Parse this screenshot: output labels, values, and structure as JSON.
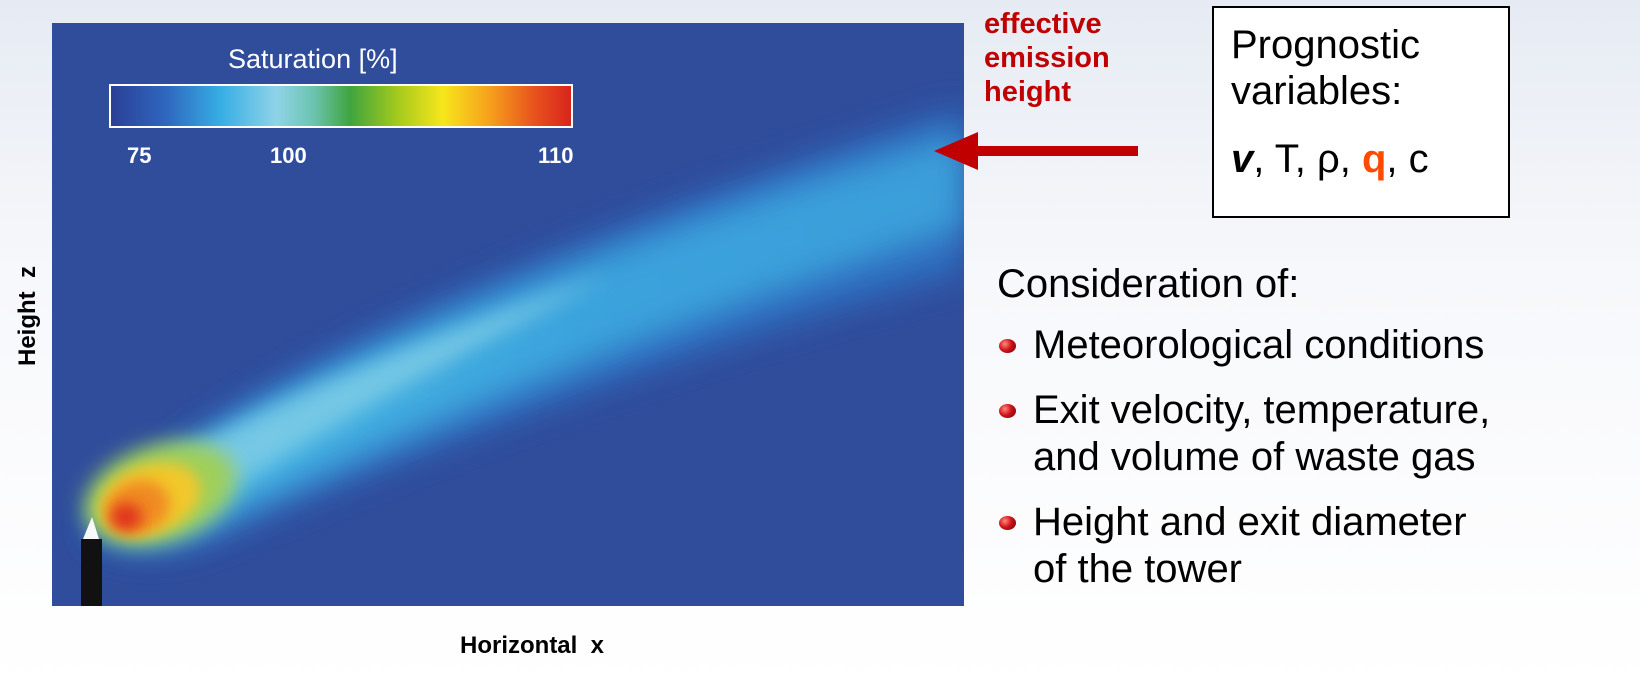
{
  "figure": {
    "colorbar": {
      "title": "Saturation  [%]",
      "ticks": [
        "75",
        "100",
        "110"
      ],
      "colors": [
        "#2b3f95",
        "#2f66be",
        "#37aee4",
        "#8fd3e8",
        "#6cc4b0",
        "#3fa43e",
        "#a2c91d",
        "#f7e61c",
        "#f6a21c",
        "#e8511d",
        "#d8231d"
      ]
    },
    "x_label": "Horizontal  x",
    "y_label": "Height  z",
    "background_color": "#304d9c"
  },
  "annotation": {
    "emission_lines": [
      "effective",
      "emission",
      "height"
    ],
    "color": "#c00000"
  },
  "prognostic": {
    "title_lines": [
      "Prognostic",
      "variables:"
    ],
    "vars": {
      "v": "v",
      "t": ", T, ρ, ",
      "q": "q",
      "c": ", c"
    },
    "highlight_color": "#ff4a00"
  },
  "consideration": {
    "heading": "Consideration of:",
    "items": [
      {
        "lines": [
          "Meteorological conditions"
        ]
      },
      {
        "lines": [
          "Exit velocity, temperature,",
          "and volume of waste gas"
        ]
      },
      {
        "lines": [
          "Height and exit diameter",
          "of  the tower"
        ]
      }
    ]
  }
}
